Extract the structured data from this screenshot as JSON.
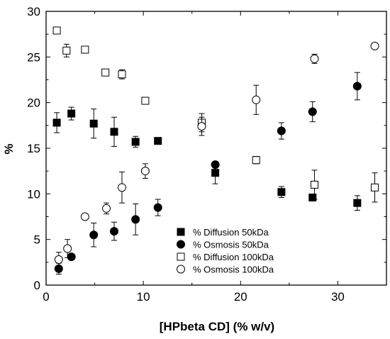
{
  "chart_data": {
    "type": "scatter",
    "title": "",
    "xlabel": "[HPbeta CD] (% w/v)",
    "ylabel": "%",
    "xlim": [
      0,
      35
    ],
    "ylim": [
      0,
      30
    ],
    "xticks": [
      "0",
      "10",
      "20",
      "30"
    ],
    "yticks": [
      "0",
      "5",
      "10",
      "15",
      "20",
      "25",
      "30"
    ],
    "grid": false,
    "legend_position": "bottom-center",
    "series": [
      {
        "name": "% Diffusion 50kDa",
        "marker": "square-filled",
        "x": [
          1.1,
          2.6,
          4.9,
          7.0,
          9.2,
          11.5,
          17.4,
          24.2,
          27.4,
          32.0
        ],
        "y": [
          17.8,
          18.8,
          17.7,
          16.8,
          15.7,
          15.8,
          12.3,
          10.2,
          9.6,
          9.0
        ],
        "err": [
          1.1,
          0.7,
          1.6,
          1.6,
          0.6,
          0.3,
          1.2,
          0.6,
          0.3,
          0.8
        ]
      },
      {
        "name": "% Osmosis 50kDa",
        "marker": "circle-filled",
        "x": [
          1.3,
          2.6,
          4.9,
          7.0,
          9.2,
          11.5,
          17.4,
          24.2,
          27.4,
          32.0
        ],
        "y": [
          1.8,
          3.1,
          5.5,
          5.9,
          7.2,
          8.5,
          13.2,
          16.9,
          19.0,
          21.8
        ],
        "err": [
          0.6,
          0.3,
          1.3,
          1.0,
          1.7,
          0.9,
          0.3,
          0.9,
          1.1,
          1.5
        ]
      },
      {
        "name": "% Diffusion 100kDa",
        "marker": "square-open",
        "x": [
          1.1,
          2.1,
          4.0,
          6.1,
          7.8,
          10.2,
          16.0,
          21.6,
          27.6,
          33.8
        ],
        "y": [
          27.9,
          25.7,
          25.8,
          23.3,
          23.1,
          20.2,
          17.8,
          13.7,
          11.0,
          10.7
        ],
        "err": [
          0.3,
          0.7,
          0.3,
          0.3,
          0.5,
          0.3,
          1.0,
          0.4,
          1.6,
          1.6
        ]
      },
      {
        "name": "% Osmosis 100kDa",
        "marker": "circle-open",
        "x": [
          1.3,
          2.2,
          4.0,
          6.2,
          7.8,
          10.2,
          16.0,
          21.6,
          27.6,
          33.8
        ],
        "y": [
          2.8,
          4.0,
          7.5,
          8.4,
          10.7,
          12.5,
          17.4,
          20.3,
          24.8,
          26.2
        ],
        "err": [
          0.8,
          1.0,
          0.3,
          0.6,
          1.7,
          0.8,
          1.0,
          1.6,
          0.5,
          0.3
        ]
      }
    ]
  }
}
